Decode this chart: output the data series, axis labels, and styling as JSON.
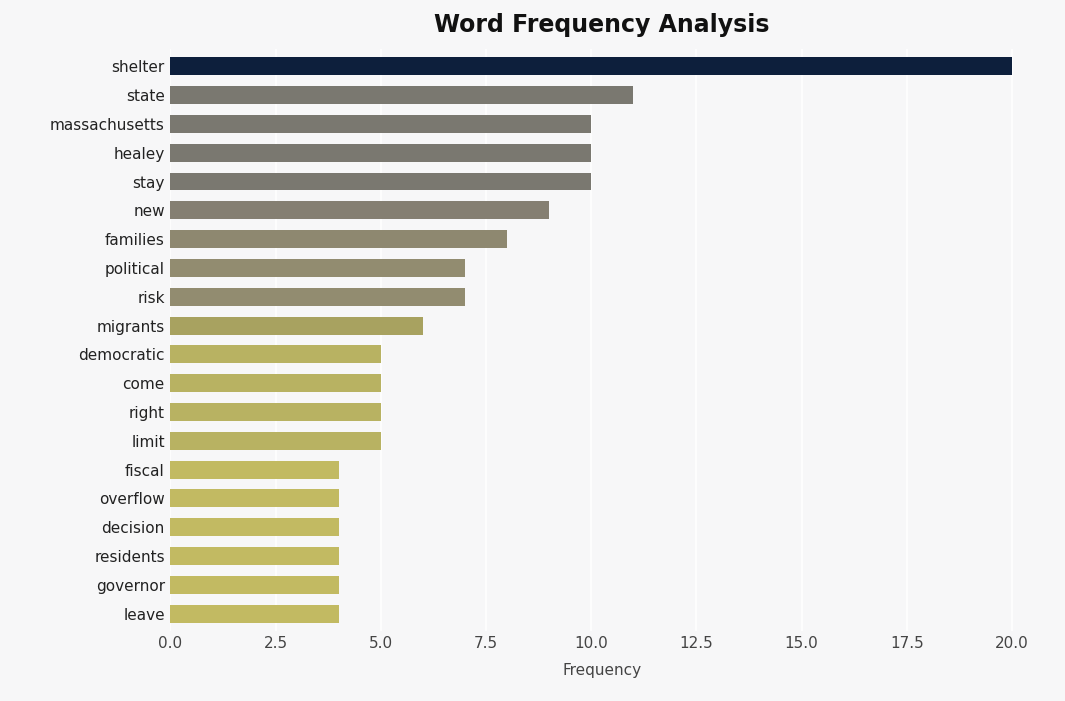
{
  "title": "Word Frequency Analysis",
  "categories": [
    "shelter",
    "state",
    "massachusetts",
    "healey",
    "stay",
    "new",
    "families",
    "political",
    "risk",
    "migrants",
    "democratic",
    "come",
    "right",
    "limit",
    "fiscal",
    "overflow",
    "decision",
    "residents",
    "governor",
    "leave"
  ],
  "values": [
    20,
    11,
    10,
    10,
    10,
    9,
    8,
    7,
    7,
    6,
    5,
    5,
    5,
    5,
    4,
    4,
    4,
    4,
    4,
    4
  ],
  "bar_colors": [
    "#0d1f3c",
    "#7a7870",
    "#7a7870",
    "#7a7870",
    "#7a7870",
    "#857f72",
    "#8e8870",
    "#928c70",
    "#928c70",
    "#a8a260",
    "#b8b262",
    "#b8b262",
    "#b8b262",
    "#b8b262",
    "#c2ba62",
    "#c2ba62",
    "#c2ba62",
    "#c2ba62",
    "#c2ba62",
    "#c2ba62"
  ],
  "xlabel": "Frequency",
  "ylabel": "",
  "xlim": [
    0,
    20.5
  ],
  "xticks": [
    0.0,
    2.5,
    5.0,
    7.5,
    10.0,
    12.5,
    15.0,
    17.5,
    20.0
  ],
  "xtick_labels": [
    "0.0",
    "2.5",
    "5.0",
    "7.5",
    "10.0",
    "12.5",
    "15.0",
    "17.5",
    "20.0"
  ],
  "background_color": "#f7f7f8",
  "plot_bg_color": "#f7f7f8",
  "grid_color": "#ffffff",
  "title_fontsize": 17,
  "axis_fontsize": 11,
  "label_fontsize": 11,
  "bar_height": 0.62
}
